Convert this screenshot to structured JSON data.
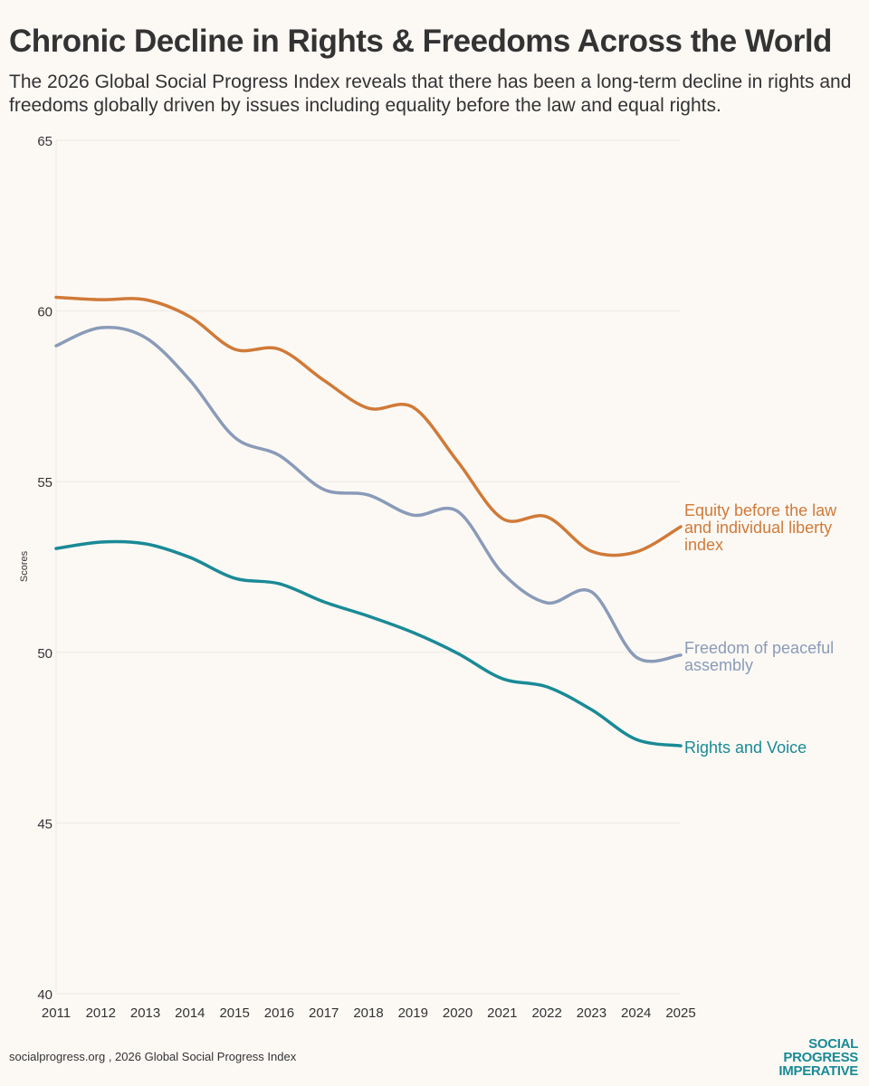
{
  "header": {
    "title": "Chronic Decline in Rights & Freedoms Across the World",
    "subtitle": "The 2026 Global Social Progress Index reveals that there has been a long-term decline in rights and freedoms globally driven by issues including equality before the law and equal rights."
  },
  "footer": {
    "source": "socialprogress.org , 2026 Global Social Progress Index",
    "logo": [
      "SOCIAL",
      "PROGRESS",
      "IMPERATIVE"
    ],
    "logo_color": "#1a8a96"
  },
  "chart_data": {
    "type": "line",
    "title": "Chronic Decline in Rights & Freedoms Across the World",
    "xlabel": "",
    "ylabel": "Scores",
    "ylim": [
      40,
      65
    ],
    "yticks": [
      40,
      45,
      50,
      55,
      60,
      65
    ],
    "grid": true,
    "legend": "direct labels at line ends (right)",
    "x": [
      2011,
      2012,
      2013,
      2014,
      2015,
      2016,
      2017,
      2018,
      2019,
      2020,
      2021,
      2022,
      2023,
      2024,
      2025
    ],
    "series": [
      {
        "name": "Equity before the law and individual liberty index",
        "label_lines": [
          "Equity before the law",
          "and individual liberty",
          "index"
        ],
        "color": "#d07a38",
        "values": [
          60.4,
          60.33,
          60.33,
          59.83,
          58.88,
          58.88,
          57.97,
          57.15,
          57.18,
          55.59,
          53.92,
          53.97,
          52.96,
          52.94,
          53.68
        ]
      },
      {
        "name": "Freedom of peaceful assembly",
        "label_lines": [
          "Freedom of peaceful",
          "assembly"
        ],
        "color": "#8a9bb8",
        "values": [
          58.98,
          59.51,
          59.22,
          57.97,
          56.3,
          55.77,
          54.77,
          54.61,
          54.02,
          54.13,
          52.33,
          51.45,
          51.77,
          49.86,
          49.92
        ]
      },
      {
        "name": "Rights and Voice",
        "label_lines": [
          "Rights and Voice"
        ],
        "color": "#1a8a96",
        "values": [
          53.04,
          53.23,
          53.18,
          52.78,
          52.17,
          52.01,
          51.48,
          51.06,
          50.58,
          49.97,
          49.23,
          48.99,
          48.32,
          47.45,
          47.26
        ]
      }
    ]
  }
}
